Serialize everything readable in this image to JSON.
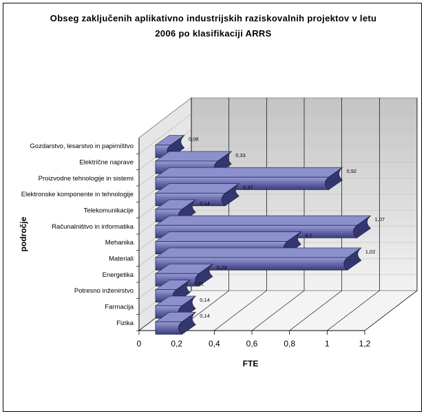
{
  "chart_data": {
    "type": "bar",
    "orientation": "horizontal",
    "title_line1": "Obseg zaključenih aplikativno industrijskih raziskovalnih projektov v letu",
    "title_line2": "2006 po klasifikaciji ARRS",
    "xlabel": "FTE",
    "ylabel": "področje",
    "xlim": [
      0,
      1.2
    ],
    "xticks": [
      "0",
      "0,2",
      "0,4",
      "0,6",
      "0,8",
      "1",
      "1,2"
    ],
    "categories": [
      "Fizika",
      "Farmacija",
      "Potresno inženirstvo",
      "Energetika",
      "Materiali",
      "Mehanika",
      "Računalništvo in informatika",
      "Telekomunikacije",
      "Elektronske komponente in tehnologije",
      "Proizvodne tehnologije in sistemi",
      "Električne naprave",
      "Gozdarstvo, lesarstvo in papirništvo"
    ],
    "values": [
      0.14,
      0.14,
      0.11,
      0.23,
      1.02,
      0.7,
      1.07,
      0.14,
      0.37,
      0.92,
      0.33,
      0.08
    ],
    "value_labels": [
      "0,14",
      "0,14",
      "0,11",
      "0,23",
      "1,02",
      "0,7",
      "1,07",
      "0,14",
      "0,37",
      "0,92",
      "0,33",
      "0,08"
    ],
    "grid": true,
    "legend": "none",
    "colors": {
      "bar": "#6b6fb0",
      "bar_dark": "#2f3168",
      "bar_light": "#9a9ed6",
      "wall": "#d4d4d4",
      "floor": "#eeeeee"
    }
  }
}
